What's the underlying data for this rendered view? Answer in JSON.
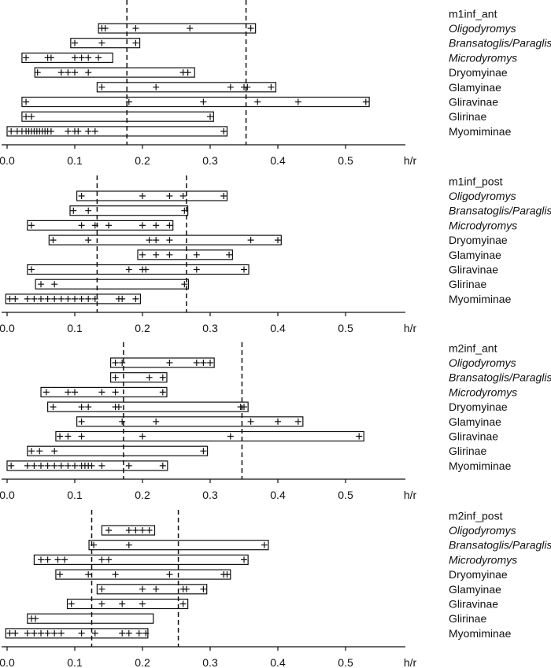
{
  "chart_data": [
    {
      "type": "range",
      "title": "m1inf_ant",
      "xlabel": "h/r",
      "xlim": [
        0.0,
        0.6
      ],
      "xticks": [
        "0.0",
        "0.1",
        "0.2",
        "0.3",
        "0.4",
        "0.5"
      ],
      "reference_lines": [
        0.177,
        0.353
      ],
      "rows": [
        {
          "label": "Oligodyromys",
          "italic": true,
          "range": [
            0.135,
            0.367
          ],
          "points": [
            0.14,
            0.145,
            0.19,
            0.27,
            0.36
          ]
        },
        {
          "label": "Bransatoglis/Paraglis",
          "italic": true,
          "range": [
            0.094,
            0.196
          ],
          "points": [
            0.1,
            0.14,
            0.19
          ]
        },
        {
          "label": "Microdyromys",
          "italic": true,
          "range": [
            0.022,
            0.156
          ],
          "points": [
            0.028,
            0.06,
            0.065,
            0.1,
            0.11,
            0.12,
            0.135
          ]
        },
        {
          "label": "Dryomyinae",
          "italic": false,
          "range": [
            0.041,
            0.277
          ],
          "points": [
            0.045,
            0.08,
            0.09,
            0.1,
            0.12,
            0.26,
            0.267
          ]
        },
        {
          "label": "Glamyinae",
          "italic": false,
          "range": [
            0.133,
            0.397
          ],
          "points": [
            0.14,
            0.22,
            0.33,
            0.35,
            0.355,
            0.39
          ]
        },
        {
          "label": "Gliravinae",
          "italic": false,
          "range": [
            0.022,
            0.535
          ],
          "points": [
            0.028,
            0.18,
            0.29,
            0.37,
            0.43,
            0.53
          ]
        },
        {
          "label": "Glirinae",
          "italic": false,
          "range": [
            0.022,
            0.305
          ],
          "points": [
            0.028,
            0.036,
            0.3
          ]
        },
        {
          "label": "Myomiminae",
          "italic": false,
          "range": [
            0.0,
            0.325
          ],
          "points": [
            0.006,
            0.015,
            0.022,
            0.028,
            0.032,
            0.036,
            0.04,
            0.044,
            0.048,
            0.052,
            0.056,
            0.06,
            0.065,
            0.09,
            0.1,
            0.105,
            0.12,
            0.13,
            0.32
          ]
        }
      ]
    },
    {
      "type": "range",
      "title": "m1inf_post",
      "xlabel": "h/r",
      "xlim": [
        0.0,
        0.6
      ],
      "xticks": [
        "0.0",
        "0.1",
        "0.2",
        "0.3",
        "0.4",
        "0.5"
      ],
      "reference_lines": [
        0.133,
        0.265
      ],
      "rows": [
        {
          "label": "Oligodyromys",
          "italic": true,
          "range": [
            0.103,
            0.325
          ],
          "points": [
            0.11,
            0.2,
            0.24,
            0.26,
            0.32
          ]
        },
        {
          "label": "Bransatoglis/Paraglis",
          "italic": true,
          "range": [
            0.093,
            0.267
          ],
          "points": [
            0.098,
            0.12,
            0.262
          ]
        },
        {
          "label": "Microdyromys",
          "italic": true,
          "range": [
            0.03,
            0.245
          ],
          "points": [
            0.036,
            0.11,
            0.13,
            0.15,
            0.2,
            0.22,
            0.24
          ]
        },
        {
          "label": "Dryomyinae",
          "italic": false,
          "range": [
            0.062,
            0.405
          ],
          "points": [
            0.068,
            0.12,
            0.21,
            0.22,
            0.24,
            0.36,
            0.4
          ]
        },
        {
          "label": "Glamyinae",
          "italic": false,
          "range": [
            0.193,
            0.333
          ],
          "points": [
            0.2,
            0.22,
            0.24,
            0.28,
            0.328
          ]
        },
        {
          "label": "Gliravinae",
          "italic": false,
          "range": [
            0.03,
            0.357
          ],
          "points": [
            0.036,
            0.18,
            0.2,
            0.205,
            0.28,
            0.35
          ]
        },
        {
          "label": "Glirinae",
          "italic": false,
          "range": [
            0.042,
            0.268
          ],
          "points": [
            0.05,
            0.07,
            0.262
          ]
        },
        {
          "label": "Myomiminae",
          "italic": false,
          "range": [
            -0.002,
            0.197
          ],
          "points": [
            0.004,
            0.012,
            0.03,
            0.04,
            0.05,
            0.06,
            0.07,
            0.08,
            0.09,
            0.1,
            0.11,
            0.12,
            0.13,
            0.165,
            0.17,
            0.19
          ]
        }
      ]
    },
    {
      "type": "range",
      "title": "m2inf_ant",
      "xlabel": "h/r",
      "xlim": [
        0.0,
        0.6
      ],
      "xticks": [
        "0.0",
        "0.1",
        "0.2",
        "0.3",
        "0.4",
        "0.5"
      ],
      "reference_lines": [
        0.172,
        0.347
      ],
      "rows": [
        {
          "label": "Oligodyromys",
          "italic": true,
          "range": [
            0.153,
            0.306
          ],
          "points": [
            0.16,
            0.17,
            0.24,
            0.28,
            0.29,
            0.3
          ]
        },
        {
          "label": "Bransatoglis/Paraglis",
          "italic": true,
          "range": [
            0.153,
            0.236
          ],
          "points": [
            0.16,
            0.21,
            0.23
          ]
        },
        {
          "label": "Microdyromys",
          "italic": true,
          "range": [
            0.05,
            0.236
          ],
          "points": [
            0.058,
            0.09,
            0.1,
            0.14,
            0.16,
            0.23
          ]
        },
        {
          "label": "Dryomyinae",
          "italic": false,
          "range": [
            0.06,
            0.356
          ],
          "points": [
            0.068,
            0.11,
            0.12,
            0.16,
            0.165,
            0.345,
            0.35
          ]
        },
        {
          "label": "Glamyinae",
          "italic": false,
          "range": [
            0.103,
            0.437
          ],
          "points": [
            0.11,
            0.17,
            0.22,
            0.36,
            0.4,
            0.43
          ]
        },
        {
          "label": "Gliravinae",
          "italic": false,
          "range": [
            0.072,
            0.527
          ],
          "points": [
            0.078,
            0.09,
            0.11,
            0.2,
            0.33,
            0.52
          ]
        },
        {
          "label": "Glirinae",
          "italic": false,
          "range": [
            0.03,
            0.296
          ],
          "points": [
            0.036,
            0.048,
            0.07,
            0.29
          ]
        },
        {
          "label": "Myomiminae",
          "italic": false,
          "range": [
            0.0,
            0.237
          ],
          "points": [
            0.006,
            0.03,
            0.04,
            0.05,
            0.06,
            0.07,
            0.08,
            0.09,
            0.1,
            0.11,
            0.115,
            0.12,
            0.125,
            0.14,
            0.18,
            0.23
          ]
        }
      ]
    },
    {
      "type": "range",
      "title": "m2inf_post",
      "xlabel": "h/r",
      "xlim": [
        0.0,
        0.6
      ],
      "xticks": [
        "0.0",
        "0.1",
        "0.2",
        "0.3",
        "0.4",
        "0.5"
      ],
      "reference_lines": [
        0.125,
        0.253
      ],
      "rows": [
        {
          "label": "Oligodyromys",
          "italic": true,
          "range": [
            0.14,
            0.218
          ],
          "points": [
            0.15,
            0.18,
            0.19,
            0.2,
            0.21
          ]
        },
        {
          "label": "Bransatoglis/Paraglis",
          "italic": true,
          "range": [
            0.121,
            0.386
          ],
          "points": [
            0.128,
            0.18,
            0.38
          ]
        },
        {
          "label": "Microdyromys",
          "italic": true,
          "range": [
            0.04,
            0.356
          ],
          "points": [
            0.05,
            0.06,
            0.075,
            0.085,
            0.14,
            0.15,
            0.35
          ]
        },
        {
          "label": "Dryomyinae",
          "italic": false,
          "range": [
            0.072,
            0.33
          ],
          "points": [
            0.078,
            0.12,
            0.16,
            0.24,
            0.32,
            0.325
          ]
        },
        {
          "label": "Glamyinae",
          "italic": false,
          "range": [
            0.133,
            0.295
          ],
          "points": [
            0.14,
            0.2,
            0.22,
            0.26,
            0.265,
            0.29
          ]
        },
        {
          "label": "Gliravinae",
          "italic": false,
          "range": [
            0.089,
            0.267
          ],
          "points": [
            0.095,
            0.14,
            0.17,
            0.2,
            0.26
          ]
        },
        {
          "label": "Glirinae",
          "italic": false,
          "range": [
            0.03,
            0.216
          ],
          "points": [
            0.036,
            0.042
          ]
        },
        {
          "label": "Myomiminae",
          "italic": false,
          "range": [
            -0.002,
            0.208
          ],
          "points": [
            0.004,
            0.012,
            0.03,
            0.04,
            0.05,
            0.06,
            0.07,
            0.08,
            0.11,
            0.13,
            0.17,
            0.18,
            0.195,
            0.205
          ]
        }
      ]
    }
  ]
}
